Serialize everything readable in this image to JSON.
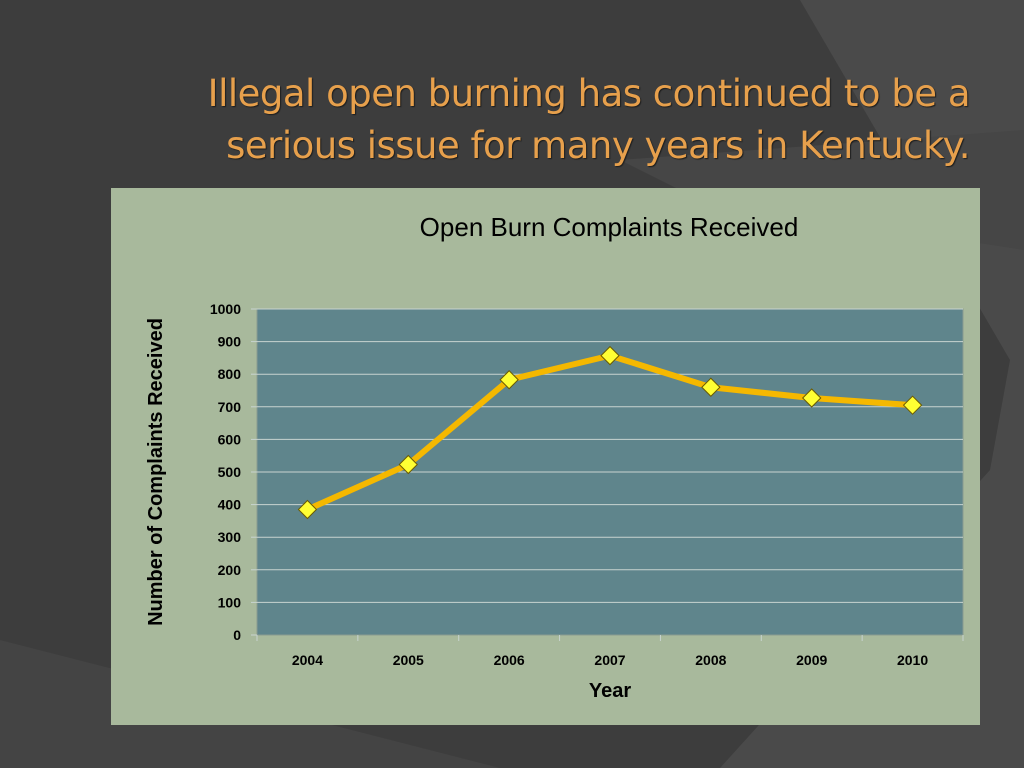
{
  "slide": {
    "title_line1": "Illegal open burning has continued to be a",
    "title_line2": "serious issue for many years in Kentucky."
  },
  "colors": {
    "background": "#3d3d3d",
    "title": "#e7a04c",
    "chart_area": "#a8b99c",
    "plot_area": "#5f858c",
    "line": "#f5b800",
    "marker": "#ffff33"
  },
  "chart_data": {
    "type": "line",
    "title": "Open Burn Complaints Received",
    "xlabel": "Year",
    "ylabel": "Number of Complaints Received",
    "categories": [
      "2004",
      "2005",
      "2006",
      "2007",
      "2008",
      "2009",
      "2010"
    ],
    "values": [
      385,
      523,
      783,
      857,
      760,
      727,
      705
    ],
    "ylim": [
      0,
      1000
    ],
    "yticks": [
      0,
      100,
      200,
      300,
      400,
      500,
      600,
      700,
      800,
      900,
      1000
    ],
    "grid": "horizontal",
    "legend": "none",
    "marker": "diamond"
  }
}
